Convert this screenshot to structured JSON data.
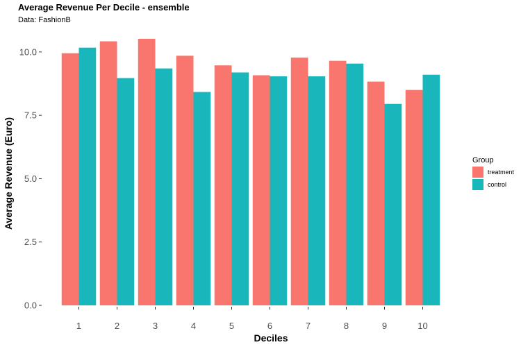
{
  "chart_data": {
    "type": "bar",
    "title": "Average Revenue Per Decile - ensemble",
    "subtitle": "Data: FashionB",
    "xlabel": "Deciles",
    "ylabel": "Average Revenue (Euro)",
    "categories": [
      "1",
      "2",
      "3",
      "4",
      "5",
      "6",
      "7",
      "8",
      "9",
      "10"
    ],
    "series": [
      {
        "name": "treatment",
        "color": "#F8766D",
        "values": [
          9.95,
          10.42,
          10.52,
          9.85,
          9.47,
          9.08,
          9.78,
          9.65,
          8.83,
          8.5
        ]
      },
      {
        "name": "control",
        "color": "#19B7BC",
        "values": [
          10.17,
          8.97,
          9.35,
          8.42,
          9.19,
          9.04,
          9.04,
          9.54,
          7.95,
          9.1
        ]
      }
    ],
    "ylim": [
      0,
      10.9
    ],
    "yticks": [
      0.0,
      2.5,
      5.0,
      7.5,
      10.0
    ],
    "ytick_labels": [
      "0.0",
      "2.5",
      "5.0",
      "7.5",
      "10.0"
    ],
    "grid": false,
    "legend": {
      "title": "Group",
      "position": "right"
    }
  }
}
